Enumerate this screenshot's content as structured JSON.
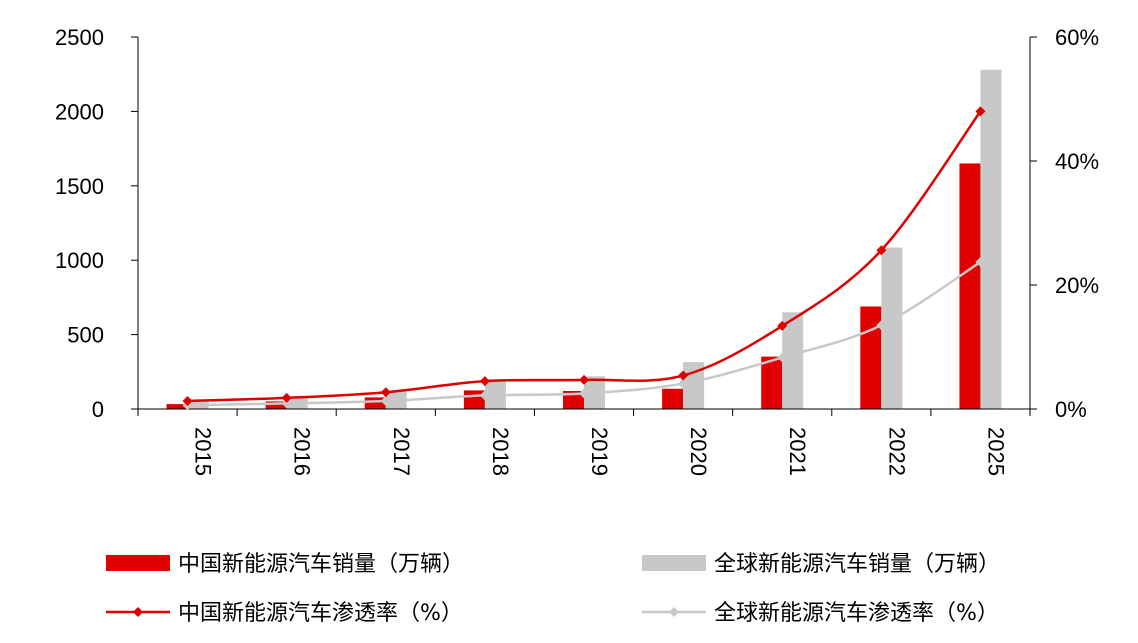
{
  "chart_data": {
    "type": "bar",
    "categories": [
      "2015",
      "2016",
      "2017",
      "2018",
      "2019",
      "2020",
      "2021",
      "2022",
      "2025"
    ],
    "series": [
      {
        "name": "中国新能源汽车销量（万辆）",
        "kind": "bar",
        "axis": "left",
        "color": "#e00000",
        "values": [
          33,
          51,
          78,
          125,
          121,
          136,
          352,
          689,
          1650
        ]
      },
      {
        "name": "全球新能源汽车销量（万辆）",
        "kind": "bar",
        "axis": "left",
        "color": "#c8c8c8",
        "values": [
          55,
          77,
          122,
          200,
          220,
          315,
          650,
          1085,
          2280
        ]
      },
      {
        "name": "中国新能源汽车渗透率（%）",
        "kind": "line",
        "axis": "right",
        "color": "#e00000",
        "marker": "diamond",
        "values": [
          1.3,
          1.8,
          2.7,
          4.5,
          4.7,
          5.4,
          13.4,
          25.6,
          48.0
        ]
      },
      {
        "name": "全球新能源汽车渗透率（%）",
        "kind": "line",
        "axis": "right",
        "color": "#c8c8c8",
        "marker": "diamond",
        "values": [
          0.6,
          0.9,
          1.3,
          2.2,
          2.5,
          4.1,
          8.3,
          13.5,
          23.7
        ]
      }
    ],
    "y_left": {
      "min": 0,
      "max": 2500,
      "ticks": [
        0,
        500,
        1000,
        1500,
        2000,
        2500
      ],
      "tick_labels": [
        "0",
        "500",
        "1000",
        "1500",
        "2000",
        "2500"
      ]
    },
    "y_right": {
      "min": 0,
      "max": 60,
      "ticks": [
        0,
        20,
        40,
        60
      ],
      "tick_labels": [
        "0%",
        "20%",
        "40%",
        "60%"
      ]
    },
    "title": "",
    "xlabel": "",
    "ylabel": "",
    "grid": false,
    "legend_position": "bottom"
  }
}
